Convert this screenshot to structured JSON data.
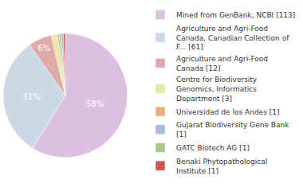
{
  "chart_data": {
    "type": "pie",
    "categories": [
      "Mined from GenBank, NCBI [113]",
      "Agriculture and Agri-Food Canada, Canadian Collection of F... [61]",
      "Agriculture and Agri-Food Canada [12]",
      "Centre for Biodiversity Genomics, Informatics Department [3]",
      "Universidad de los Andes [1]",
      "Gujarat Biodiversity Gene Bank [1]",
      "GATC Biotech AG [1]",
      "Benaki Phytopathological Institute [1]"
    ],
    "values": [
      58,
      31,
      6,
      1.6,
      0.5,
      0.5,
      0.5,
      0.5
    ],
    "value_labels": [
      "58%",
      "31%",
      "6%",
      null,
      null,
      null,
      null,
      null
    ],
    "colors": [
      "#dcc0e0",
      "#cbd8e6",
      "#e0aaa6",
      "#e6e9a8",
      "#e8b080",
      "#a9b9da",
      "#a9c991",
      "#d05252"
    ],
    "legend": "right",
    "data_labels": true
  }
}
